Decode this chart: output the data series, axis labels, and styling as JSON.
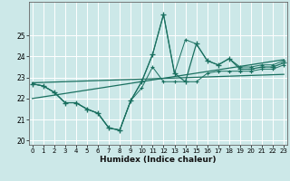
{
  "xlabel": "Humidex (Indice chaleur)",
  "bg_color": "#cce8e8",
  "grid_color": "#ffffff",
  "line_color": "#1a7060",
  "x_values": [
    0,
    1,
    2,
    3,
    4,
    5,
    6,
    7,
    8,
    9,
    10,
    11,
    12,
    13,
    14,
    15,
    16,
    17,
    18,
    19,
    20,
    21,
    22,
    23
  ],
  "y_main": [
    22.7,
    22.6,
    22.3,
    21.8,
    21.8,
    21.5,
    21.3,
    20.6,
    20.5,
    21.9,
    22.8,
    24.1,
    26.0,
    23.2,
    22.8,
    24.6,
    23.8,
    23.6,
    23.9,
    23.4,
    23.4,
    23.5,
    23.5,
    23.7
  ],
  "y_low": [
    22.7,
    22.6,
    22.3,
    21.8,
    21.8,
    21.5,
    21.3,
    20.6,
    20.5,
    21.9,
    22.5,
    23.5,
    22.8,
    22.8,
    22.8,
    22.8,
    23.2,
    23.3,
    23.3,
    23.3,
    23.3,
    23.4,
    23.4,
    23.6
  ],
  "y_high": [
    22.7,
    22.6,
    22.3,
    21.8,
    21.8,
    21.5,
    21.3,
    20.6,
    20.5,
    21.9,
    22.8,
    24.1,
    26.0,
    23.2,
    24.8,
    24.6,
    23.8,
    23.6,
    23.9,
    23.5,
    23.5,
    23.6,
    23.6,
    23.8
  ],
  "trend1_x": [
    0,
    23
  ],
  "trend1_y": [
    22.75,
    23.15
  ],
  "trend2_x": [
    0,
    23
  ],
  "trend2_y": [
    22.0,
    23.85
  ],
  "ylim": [
    19.8,
    26.6
  ],
  "yticks": [
    20,
    21,
    22,
    23,
    24,
    25
  ],
  "xticks": [
    0,
    1,
    2,
    3,
    4,
    5,
    6,
    7,
    8,
    9,
    10,
    11,
    12,
    13,
    14,
    15,
    16,
    17,
    18,
    19,
    20,
    21,
    22,
    23
  ],
  "xlim": [
    -0.3,
    23.3
  ]
}
